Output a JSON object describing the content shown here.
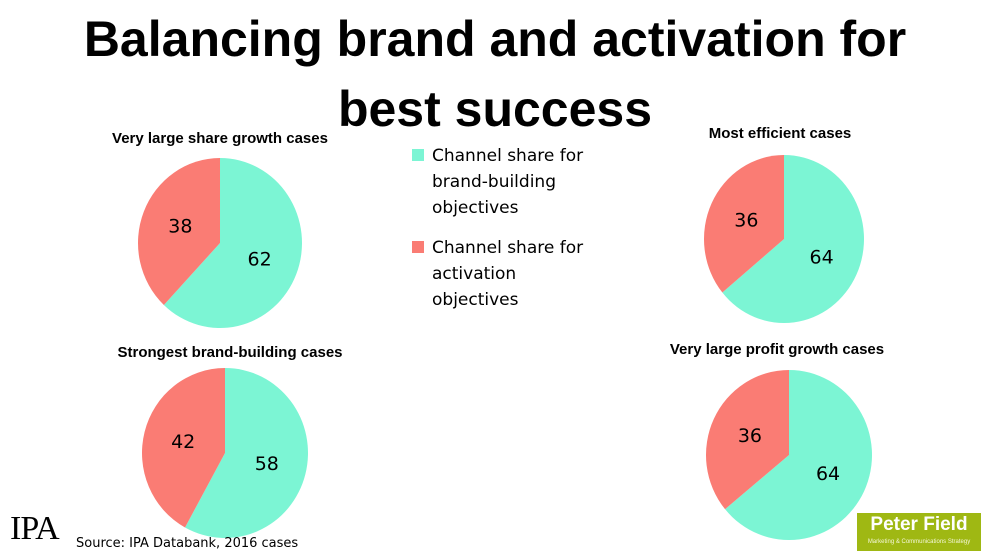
{
  "title_line1": "Balancing brand and activation for",
  "title_line2": "best success",
  "colors": {
    "brand": "#7cf5d4",
    "activation": "#fa7c74"
  },
  "legend": [
    {
      "label_lines": [
        "Channel share for",
        "brand-building",
        "objectives"
      ],
      "color": "#7cf5d4"
    },
    {
      "label_lines": [
        "Channel share for",
        "activation",
        "objectives"
      ],
      "color": "#fa7c74"
    }
  ],
  "chart_data": [
    {
      "type": "pie",
      "title": "Very large share growth cases",
      "slices": [
        {
          "label": "Channel share for brand-building objectives",
          "value": 62
        },
        {
          "label": "Channel share for activation objectives",
          "value": 38
        }
      ]
    },
    {
      "type": "pie",
      "title": "Most efficient cases",
      "slices": [
        {
          "label": "Channel share for brand-building objectives",
          "value": 64
        },
        {
          "label": "Channel share for activation objectives",
          "value": 36
        }
      ]
    },
    {
      "type": "pie",
      "title": "Strongest brand-building cases",
      "slices": [
        {
          "label": "Channel share for brand-building objectives",
          "value": 58
        },
        {
          "label": "Channel share for activation objectives",
          "value": 42
        }
      ]
    },
    {
      "type": "pie",
      "title": "Very large profit growth cases",
      "slices": [
        {
          "label": "Channel share for brand-building objectives",
          "value": 64
        },
        {
          "label": "Channel share for activation objectives",
          "value": 36
        }
      ]
    }
  ],
  "source": "Source: IPA Databank, 2016 cases",
  "logos": {
    "ipa": "IPA",
    "peter_field_name": "Peter Field",
    "peter_field_tagline": "Marketing & Communications Strategy"
  }
}
